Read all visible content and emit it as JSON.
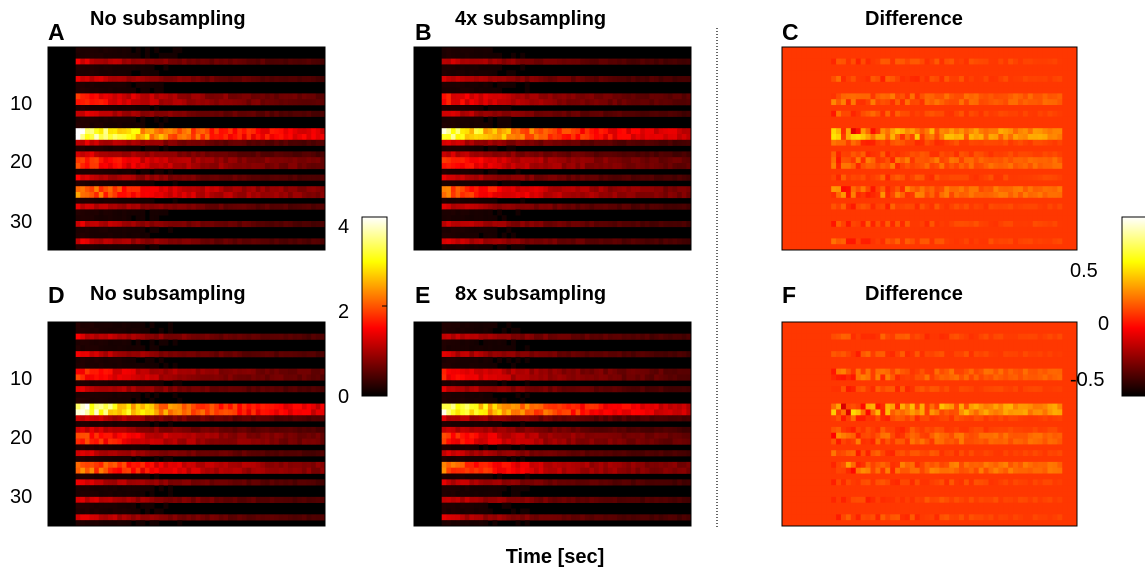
{
  "figure": {
    "xlabel": "Time [sec]"
  },
  "chart_data": [
    {
      "type": "heatmap",
      "panel": "A",
      "title": "No subsampling",
      "colormap": "hot",
      "yticks": [
        "10",
        "20",
        "30"
      ],
      "ylim": [
        0,
        35
      ],
      "clim": [
        0,
        4
      ],
      "variant": "orig",
      "seed": 1
    },
    {
      "type": "heatmap",
      "panel": "B",
      "title": "4x subsampling",
      "colormap": "hot",
      "ylim": [
        0,
        35
      ],
      "clim": [
        0,
        4
      ],
      "variant": "sub",
      "seed": 1
    },
    {
      "type": "heatmap",
      "panel": "C",
      "title": "Difference",
      "colormap": "hot",
      "ylim": [
        0,
        35
      ],
      "clim": [
        -0.7,
        0.9
      ],
      "variant": "diff",
      "seed": 1
    },
    {
      "type": "heatmap",
      "panel": "D",
      "title": "No subsampling",
      "colormap": "hot",
      "yticks": [
        "10",
        "20",
        "30"
      ],
      "ylim": [
        0,
        35
      ],
      "clim": [
        0,
        4
      ],
      "variant": "orig",
      "seed": 2
    },
    {
      "type": "heatmap",
      "panel": "E",
      "title": "8x subsampling",
      "colormap": "hot",
      "ylim": [
        0,
        35
      ],
      "clim": [
        0,
        4
      ],
      "variant": "sub",
      "seed": 2
    },
    {
      "type": "heatmap",
      "panel": "F",
      "title": "Difference",
      "colormap": "hot",
      "ylim": [
        0,
        35
      ],
      "clim": [
        -0.7,
        0.9
      ],
      "variant": "diff",
      "seed": 2
    }
  ],
  "colorbars": [
    {
      "name": "intensity",
      "ticks": [
        "4",
        "2",
        "0"
      ],
      "values": [
        4,
        2,
        0
      ],
      "range": [
        0,
        4
      ]
    },
    {
      "name": "difference",
      "ticks": [
        "0.5",
        "0",
        "-0.5"
      ],
      "values": [
        0.5,
        0,
        -0.5
      ],
      "range": [
        -0.7,
        0.9
      ]
    }
  ],
  "colors": {
    "hot_low": "#000000",
    "hot_mid": "#ff3000",
    "hot_high": "#ffffff",
    "background": "#ffffff",
    "separator": "#666666"
  }
}
